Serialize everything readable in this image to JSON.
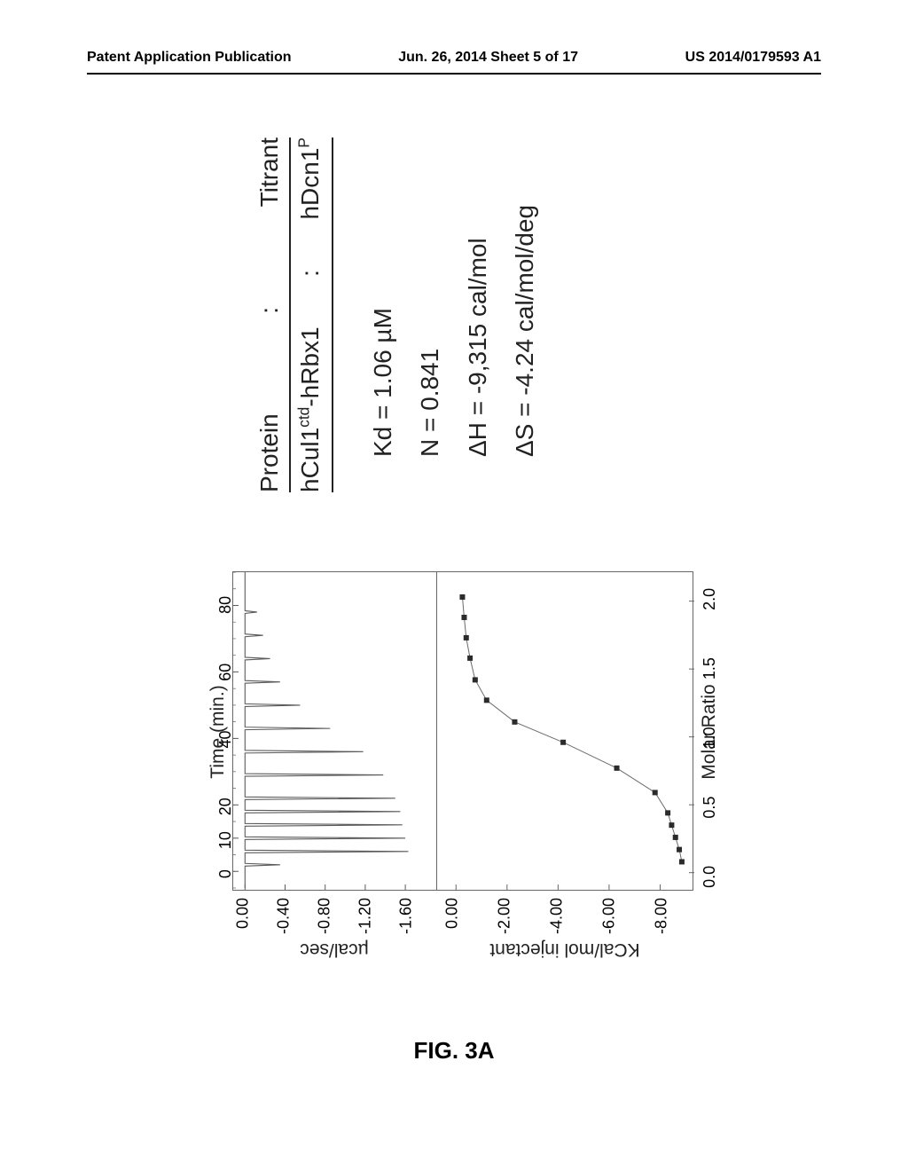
{
  "header": {
    "left": "Patent Application Publication",
    "center": "Jun. 26, 2014  Sheet 5 of 17",
    "right": "US 2014/0179593 A1"
  },
  "caption": "FIG. 3A",
  "panel": {
    "protein_label": "Protein",
    "titrant_label": "Titrant",
    "protein": "hCul1",
    "protein_sup": "ctd",
    "protein_tail": "-hRbx1",
    "titrant": "hDcn1",
    "titrant_sup": "P",
    "kd": "Kd = 1.06 µM",
    "N": "N = 0.841",
    "dH": "ΔH = -9,315 cal/mol",
    "dS": "ΔS = -4.24 cal/mol/deg"
  },
  "top_chart": {
    "type": "line-spikes",
    "title": "Time (min.)",
    "ylabel": "µcal/sec",
    "x_ticks": [
      0,
      10,
      20,
      40,
      60,
      80
    ],
    "x_range": [
      -5,
      90
    ],
    "y_ticks": [
      0.0,
      -0.4,
      -0.8,
      -1.2,
      -1.6
    ],
    "y_range": [
      -1.9,
      0.1
    ],
    "spikes_time": [
      2,
      6,
      10,
      14,
      18,
      22,
      29,
      36,
      43,
      50,
      57,
      64,
      71,
      78
    ],
    "spikes_depth": [
      -0.35,
      -1.63,
      -1.6,
      -1.57,
      -1.55,
      -1.5,
      -1.38,
      -1.18,
      -0.85,
      -0.55,
      -0.35,
      -0.25,
      -0.18,
      -0.12
    ],
    "line_color": "#5b5b5b",
    "line_width": 1.1,
    "box_color": "#5b5b5b",
    "background_color": "#ffffff"
  },
  "bot_chart": {
    "type": "scatter-with-fit",
    "xlabel": "Molar Ratio",
    "ylabel": "KCal/mol injectant",
    "x_ticks": [
      0.0,
      0.5,
      1.0,
      1.5,
      2.0
    ],
    "x_range": [
      -0.1,
      2.2
    ],
    "y_ticks": [
      0.0,
      -2.0,
      -4.0,
      -6.0,
      -8.0
    ],
    "y_range": [
      -9.2,
      0.6
    ],
    "points_x": [
      0.08,
      0.17,
      0.26,
      0.35,
      0.44,
      0.59,
      0.77,
      0.96,
      1.11,
      1.27,
      1.42,
      1.58,
      1.73,
      1.88,
      2.03
    ],
    "points_y": [
      -8.85,
      -8.75,
      -8.6,
      -8.45,
      -8.3,
      -7.8,
      -6.3,
      -4.2,
      -2.3,
      -1.2,
      -0.75,
      -0.55,
      -0.4,
      -0.32,
      -0.25
    ],
    "marker": "square",
    "marker_size": 6,
    "marker_color": "#2b2b2b",
    "fit_color": "#6a6a6a",
    "fit_width": 1,
    "background_color": "#ffffff"
  },
  "style": {
    "tick_fontsize": 18,
    "axis_title_fontsize": 21,
    "panel_fontsize": 28,
    "text_color": "#222222"
  }
}
